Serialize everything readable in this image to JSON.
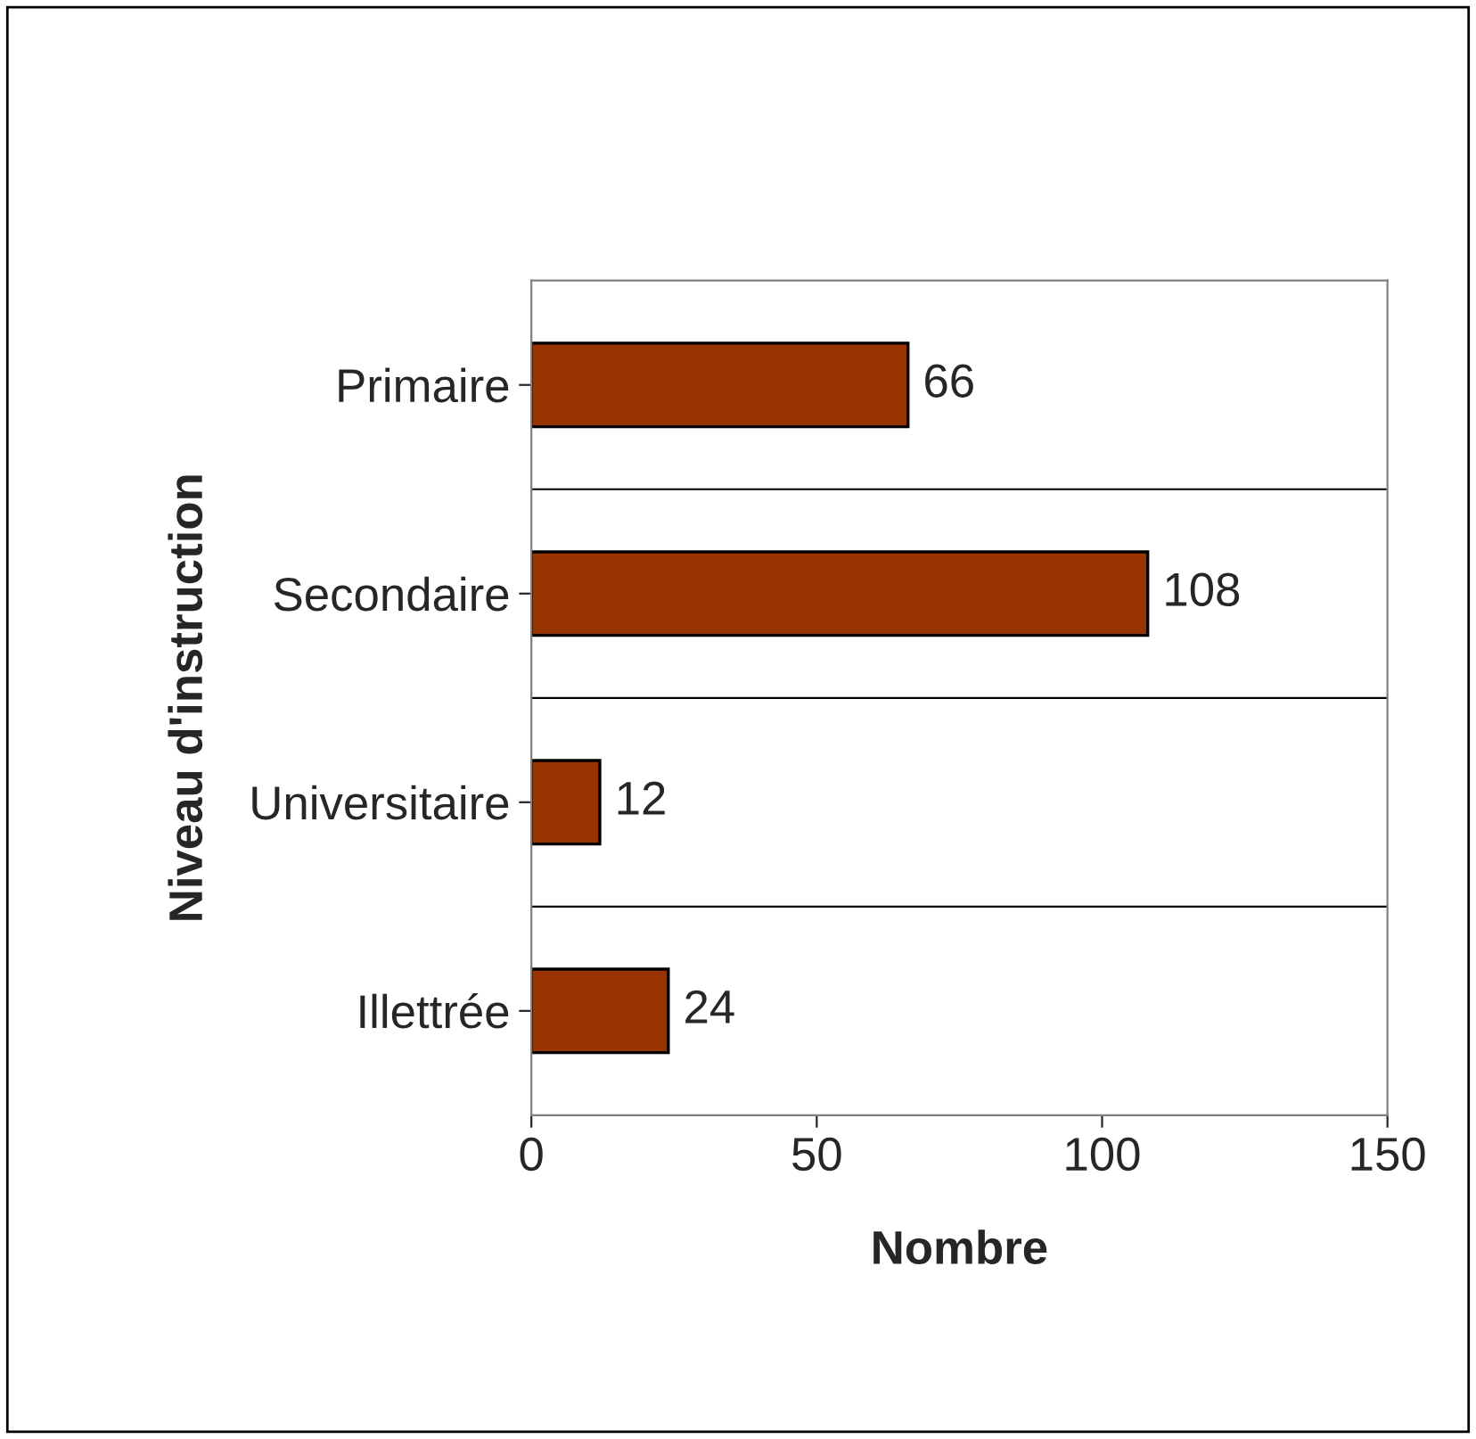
{
  "chart_data": {
    "type": "bar",
    "orientation": "horizontal",
    "categories": [
      "Primaire",
      "Secondaire",
      "Universitaire",
      "Illettrée"
    ],
    "values": [
      66,
      108,
      12,
      24
    ],
    "color": "#993300",
    "xlim": [
      0,
      150
    ],
    "xticks": [
      0,
      50,
      100,
      150
    ],
    "xlabel": "Nombre",
    "ylabel": "Niveau d'instruction",
    "data_labels": true,
    "grid": "y",
    "legend": false
  }
}
